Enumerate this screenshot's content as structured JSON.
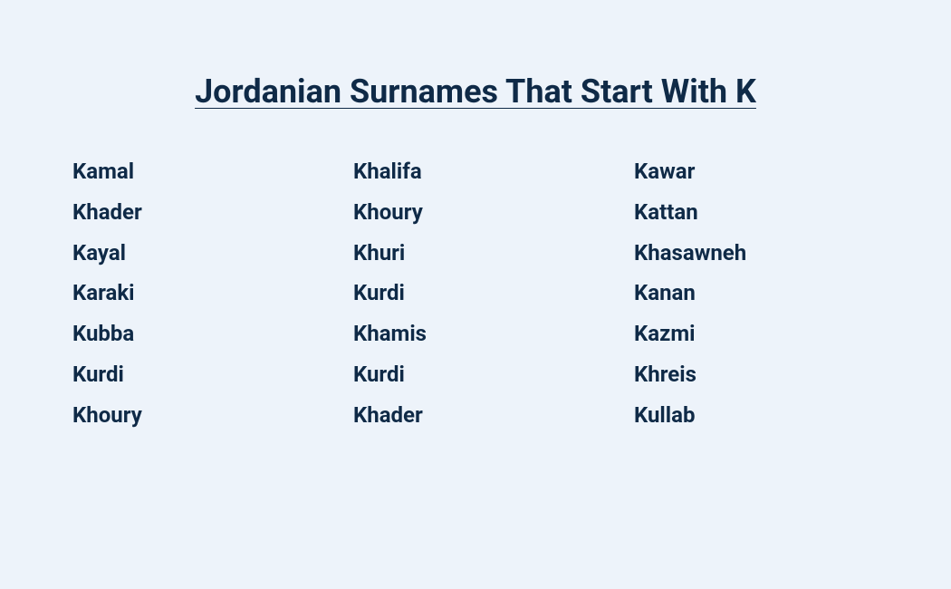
{
  "title": "Jordanian Surnames That Start With K",
  "styling": {
    "background_color": "#edf3fa",
    "text_color": "#0f2a47",
    "title_fontsize": 36,
    "title_fontweight": 700,
    "title_underline": true,
    "item_fontsize": 24,
    "item_fontweight": 700,
    "columns_count": 3,
    "rows_per_column": 7
  },
  "columns": [
    {
      "items": [
        "Kamal",
        "Khader",
        "Kayal",
        "Karaki",
        "Kubba",
        "Kurdi",
        "Khoury"
      ]
    },
    {
      "items": [
        "Khalifa",
        "Khoury",
        "Khuri",
        "Kurdi",
        "Khamis",
        "Kurdi",
        "Khader"
      ]
    },
    {
      "items": [
        "Kawar",
        "Kattan",
        "Khasawneh",
        "Kanan",
        "Kazmi",
        "Khreis",
        "Kullab"
      ]
    }
  ]
}
